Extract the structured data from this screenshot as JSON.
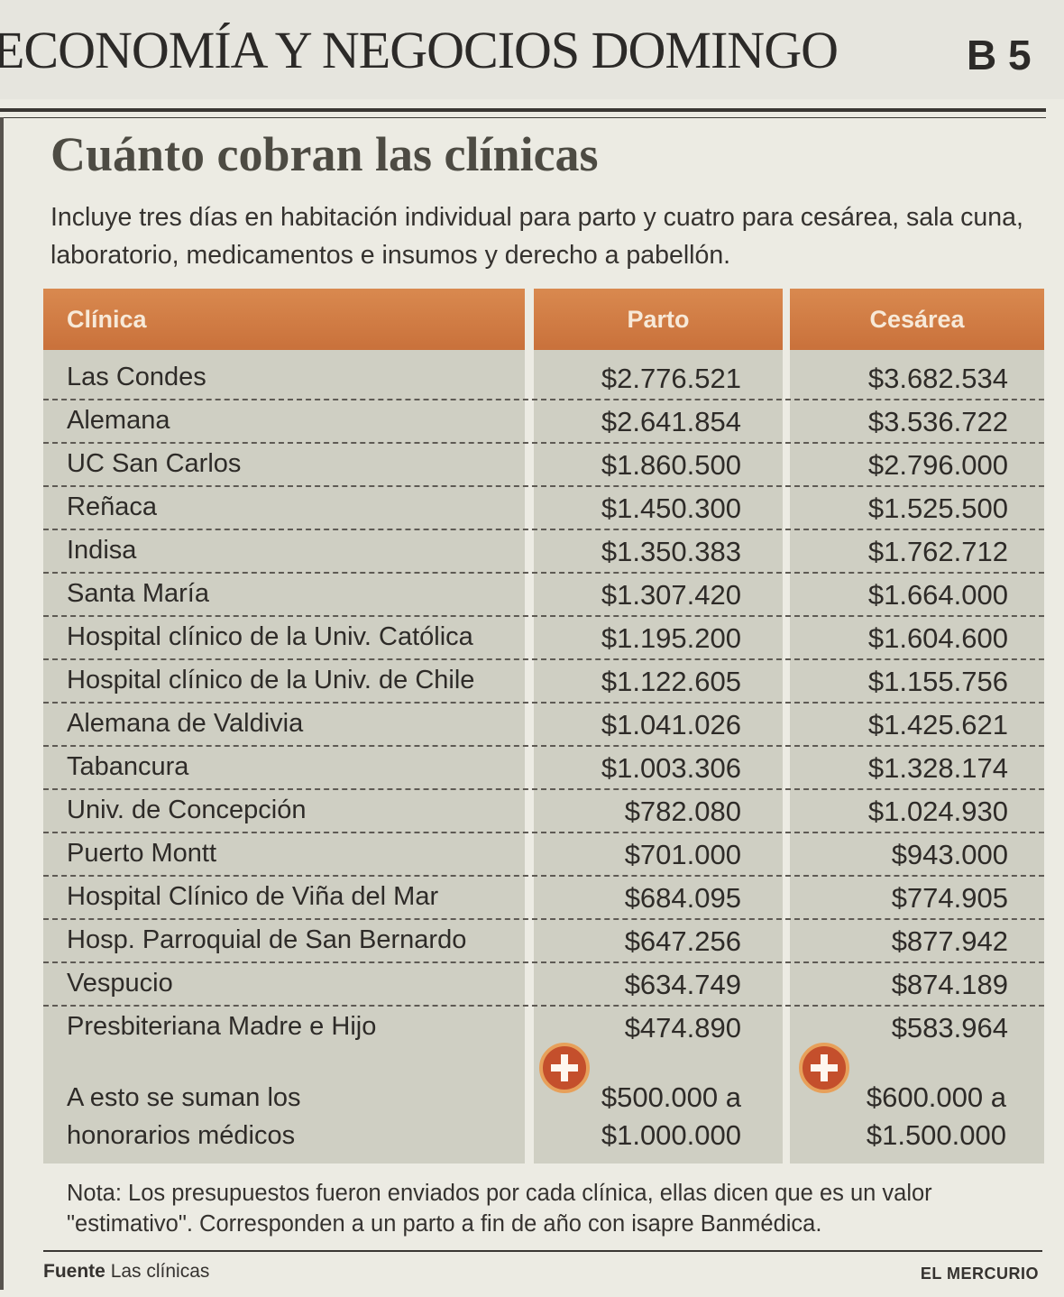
{
  "section": {
    "title": "ECONOMÍA Y NEGOCIOS DOMINGO",
    "page": "B 5"
  },
  "headline": "Cuánto cobran las clínicas",
  "subtitle": "Incluye tres días en habitación individual para parto y cuatro para cesárea, sala cuna, laboratorio, medicamentos e insumos y derecho a pabellón.",
  "table": {
    "headers": {
      "clinic": "Clínica",
      "parto": "Parto",
      "cesarea": "Cesárea"
    },
    "rows": [
      {
        "clinic": "Las Condes",
        "parto": "$2.776.521",
        "cesarea": "$3.682.534"
      },
      {
        "clinic": "Alemana",
        "parto": "$2.641.854",
        "cesarea": "$3.536.722"
      },
      {
        "clinic": "UC San Carlos",
        "parto": "$1.860.500",
        "cesarea": "$2.796.000"
      },
      {
        "clinic": "Reñaca",
        "parto": "$1.450.300",
        "cesarea": "$1.525.500"
      },
      {
        "clinic": "Indisa",
        "parto": "$1.350.383",
        "cesarea": "$1.762.712"
      },
      {
        "clinic": "Santa María",
        "parto": "$1.307.420",
        "cesarea": "$1.664.000"
      },
      {
        "clinic": "Hospital clínico de la Univ. Católica",
        "parto": "$1.195.200",
        "cesarea": "$1.604.600"
      },
      {
        "clinic": "Hospital clínico de la Univ. de Chile",
        "parto": "$1.122.605",
        "cesarea": "$1.155.756"
      },
      {
        "clinic": "Alemana de Valdivia",
        "parto": "$1.041.026",
        "cesarea": "$1.425.621"
      },
      {
        "clinic": "Tabancura",
        "parto": "$1.003.306",
        "cesarea": "$1.328.174"
      },
      {
        "clinic": "Univ. de Concepción",
        "parto": "$782.080",
        "cesarea": "$1.024.930"
      },
      {
        "clinic": "Puerto Montt",
        "parto": "$701.000",
        "cesarea": "$943.000"
      },
      {
        "clinic": "Hospital Clínico de Viña del Mar",
        "parto": "$684.095",
        "cesarea": "$774.905"
      },
      {
        "clinic": "Hosp. Parroquial de San Bernardo",
        "parto": "$647.256",
        "cesarea": "$877.942"
      },
      {
        "clinic": "Vespucio",
        "parto": "$634.749",
        "cesarea": "$874.189"
      },
      {
        "clinic": "Presbiteriana Madre e Hijo",
        "parto": "$474.890",
        "cesarea": "$583.964"
      }
    ],
    "fees": {
      "label_line1": "A esto se suman los",
      "label_line2": "honorarios médicos",
      "parto_line1": "$500.000 a",
      "parto_line2": "$1.000.000",
      "cesarea_line1": "$600.000 a",
      "cesarea_line2": "$1.500.000"
    }
  },
  "note_line1": "Nota: Los presupuestos fueron enviados por cada clínica, ellas dicen que es un valor",
  "note_line2": "\"estimativo\". Corresponden a un parto a fin de año con isapre Banmédica.",
  "source": {
    "label": "Fuente",
    "text": "Las clínicas"
  },
  "brand": "EL MERCURIO",
  "colors": {
    "header": "#d17a43",
    "column_bg": "#cfcfc3",
    "plus_badge": "#c44f2c"
  }
}
